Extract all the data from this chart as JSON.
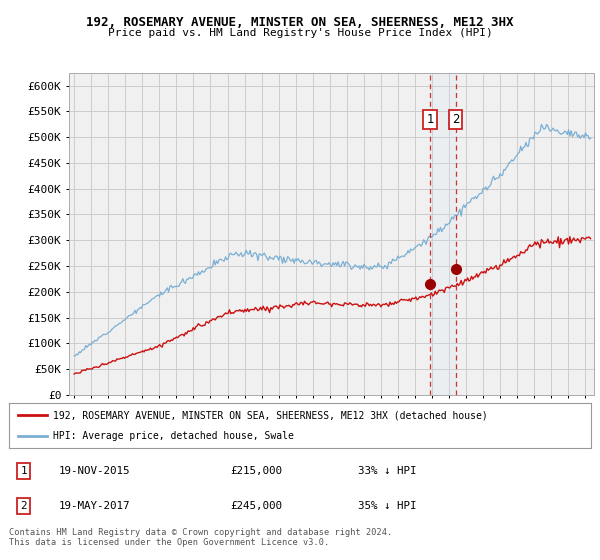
{
  "title1": "192, ROSEMARY AVENUE, MINSTER ON SEA, SHEERNESS, ME12 3HX",
  "title2": "Price paid vs. HM Land Registry's House Price Index (HPI)",
  "ylabel_ticks": [
    "£0",
    "£50K",
    "£100K",
    "£150K",
    "£200K",
    "£250K",
    "£300K",
    "£350K",
    "£400K",
    "£450K",
    "£500K",
    "£550K",
    "£600K"
  ],
  "ytick_vals": [
    0,
    50000,
    100000,
    150000,
    200000,
    250000,
    300000,
    350000,
    400000,
    450000,
    500000,
    550000,
    600000
  ],
  "ylim": [
    0,
    625000
  ],
  "xlim_start": 1994.7,
  "xlim_end": 2025.5,
  "hpi_color": "#7bafd4",
  "price_color": "#cc1111",
  "marker1_x": 2015.89,
  "marker1_y": 215000,
  "marker2_x": 2017.38,
  "marker2_y": 245000,
  "annotation1_date": "19-NOV-2015",
  "annotation1_price": "£215,000",
  "annotation1_hpi": "33% ↓ HPI",
  "annotation2_date": "19-MAY-2017",
  "annotation2_price": "£245,000",
  "annotation2_hpi": "35% ↓ HPI",
  "legend_line1": "192, ROSEMARY AVENUE, MINSTER ON SEA, SHEERNESS, ME12 3HX (detached house)",
  "legend_line2": "HPI: Average price, detached house, Swale",
  "footer": "Contains HM Land Registry data © Crown copyright and database right 2024.\nThis data is licensed under the Open Government Licence v3.0.",
  "grid_color": "#cccccc",
  "bg_color": "#ffffff",
  "plot_bg": "#f0f0f0"
}
